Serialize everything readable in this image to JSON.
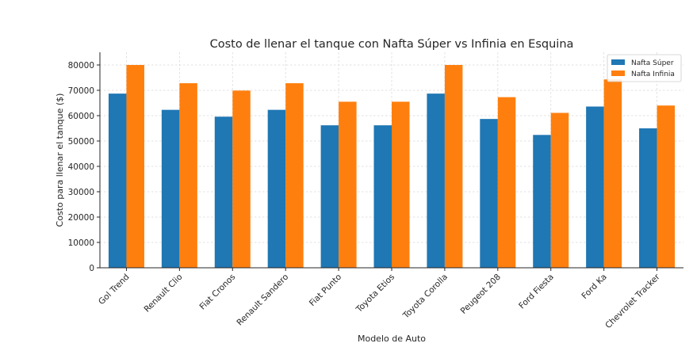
{
  "chart_data": {
    "type": "bar",
    "title": "Costo de llenar el tanque con Nafta Súper vs Infinia en Esquina",
    "xlabel": "Modelo de Auto",
    "ylabel": "Costo para llenar el tanque ($)",
    "categories": [
      "Gol Trend",
      "Renault Clio",
      "Fiat Cronos",
      "Renault Sandero",
      "Fiat Punto",
      "Toyota Etios",
      "Toyota Corolla",
      "Peugeot 208",
      "Ford Fiesta",
      "Ford Ka",
      "Chevrolet Tracker"
    ],
    "series": [
      {
        "name": "Nafta Súper",
        "color": "#1f77b4",
        "values": [
          68700,
          62300,
          59600,
          62300,
          56200,
          56200,
          68700,
          58700,
          52400,
          63600,
          55000
        ]
      },
      {
        "name": "Nafta Infinia",
        "color": "#ff7f0e",
        "values": [
          80000,
          72800,
          69900,
          72800,
          65500,
          65500,
          80000,
          67300,
          61100,
          74300,
          64000
        ]
      }
    ],
    "ylim": [
      0,
      85000
    ],
    "yticks": [
      0,
      10000,
      20000,
      30000,
      40000,
      50000,
      60000,
      70000,
      80000
    ],
    "grid": true,
    "legend": "top-right"
  }
}
